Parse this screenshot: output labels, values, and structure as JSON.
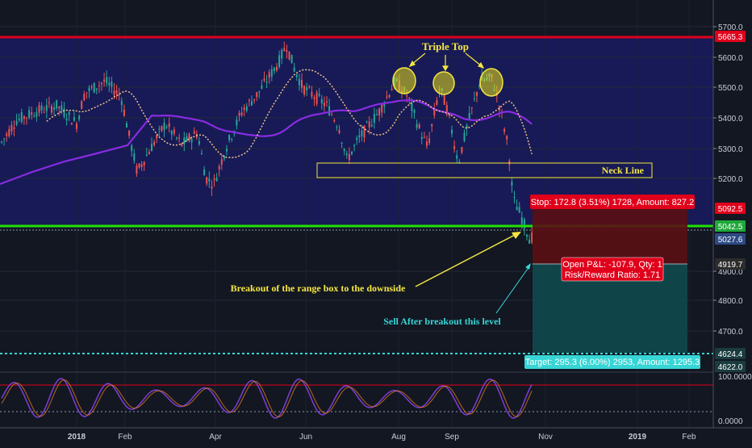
{
  "chart_data": {
    "type": "candlestick",
    "x_axis_labels": [
      "2018",
      "Feb",
      "Apr",
      "Jun",
      "Aug",
      "Sep",
      "Nov",
      "2019",
      "Feb"
    ],
    "y_axis_ticks": [
      "5700.0",
      "5600.0",
      "5500.0",
      "5400.0",
      "5300.0",
      "5200.0",
      "4900.0",
      "4800.0",
      "4700.0"
    ],
    "price_tags": [
      {
        "label": "5665.3",
        "color": "#e0001b"
      },
      {
        "label": "5092.5",
        "color": "#e0001b"
      },
      {
        "label": "5042.5",
        "color": "#1fa83a"
      },
      {
        "label": "5027.6",
        "color": "#2e4a84"
      },
      {
        "label": "4919.7",
        "color": "#2c2c2c"
      },
      {
        "label": "4624.4",
        "color": "#1a3c3f"
      },
      {
        "label": "4622.0",
        "color": "#1a3c3f"
      }
    ],
    "levels": {
      "resistance": 5665.3,
      "support": 5042.5,
      "last_close": 5027.6,
      "target": 4624.4,
      "neck_line_top": 5250,
      "neck_line_bottom": 5205
    },
    "position": {
      "stop_label": "Stop: 172.8 (3.51%) 1728, Amount: 827.2",
      "pnl_label": "Open P&L: -107.9, Qty: 1",
      "rr_label": "Risk/Reward Ratio: 1.71",
      "target_label": "Target: 295.3 (6.00%) 2953, Amount: 1295.3",
      "entry": 4919.7,
      "stop": 5092.5,
      "target": 4624.4
    },
    "annotations": {
      "triple_top": "Triple Top",
      "neck_line": "Neck Line",
      "breakout": "Breakout of the range box to the downside",
      "sell_after": "Sell After breakout this level"
    },
    "oscillator": {
      "ticks": [
        "100.0000",
        "0.0000"
      ],
      "upper_line": 80,
      "lower_line": 20
    },
    "colors": {
      "up": "#26a69a",
      "down": "#ef5350",
      "ma_slow": "#8a2be2",
      "ma_fast": "#f0c08a",
      "range_box": "#171a56",
      "annotation": "#f5e642",
      "sell_text": "#37d5d5"
    }
  }
}
